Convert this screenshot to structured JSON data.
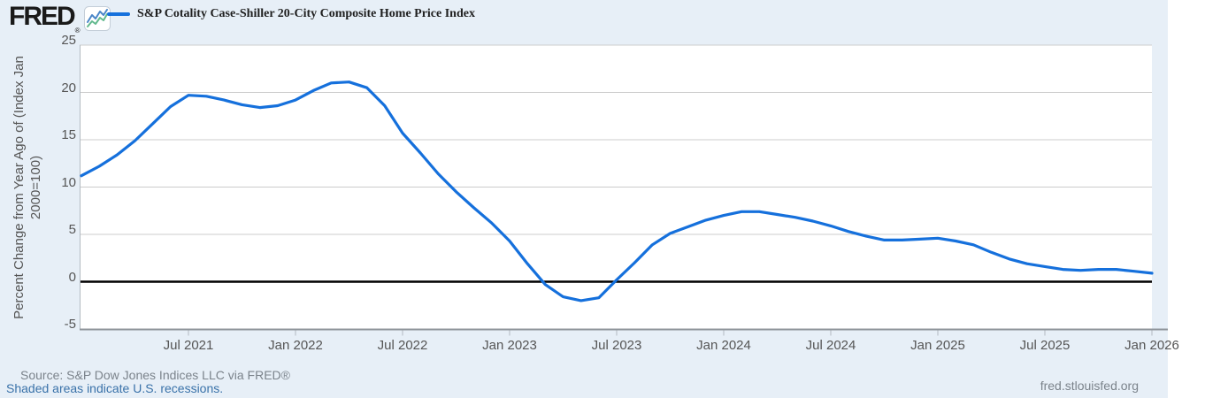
{
  "brand": {
    "logo_text": "FRED",
    "registered_mark": "®",
    "icon": "fred-sparkline-icon"
  },
  "chart_data": {
    "type": "line",
    "title": "S&P Cotality Case-Shiller 20-City Composite Home Price Index",
    "ylabel_lines": [
      "Percent Change from Year Ago of (Index Jan",
      "2000=100)"
    ],
    "ylim": [
      -5,
      25
    ],
    "y_ticks": [
      25,
      20,
      15,
      10,
      5,
      0,
      -5
    ],
    "grid": "horizontal",
    "zero_line": true,
    "legend_position": "top",
    "x_domain": [
      "Jan 2021",
      "Jan 2026"
    ],
    "months_total": 60,
    "x_ticks": [
      {
        "label": "Jul 2021",
        "m": 6
      },
      {
        "label": "Jan 2022",
        "m": 12
      },
      {
        "label": "Jul 2022",
        "m": 18
      },
      {
        "label": "Jan 2023",
        "m": 24
      },
      {
        "label": "Jul 2023",
        "m": 30
      },
      {
        "label": "Jan 2024",
        "m": 36
      },
      {
        "label": "Jul 2024",
        "m": 42
      },
      {
        "label": "Jan 2025",
        "m": 48
      },
      {
        "label": "Jul 2025",
        "m": 54
      },
      {
        "label": "Jan 2026",
        "m": 60
      }
    ],
    "series": [
      {
        "name": "S&P Cotality Case-Shiller 20-City Composite Home Price Index",
        "start": "Jan 2021",
        "frequency": "monthly",
        "values": [
          11.2,
          12.2,
          13.4,
          14.9,
          16.7,
          18.5,
          19.7,
          19.6,
          19.2,
          18.7,
          18.4,
          18.6,
          19.2,
          20.2,
          21.0,
          21.1,
          20.5,
          18.6,
          15.7,
          13.6,
          11.4,
          9.5,
          7.8,
          6.2,
          4.3,
          1.9,
          -0.3,
          -1.6,
          -2.0,
          -1.7,
          0.2,
          2.0,
          3.9,
          5.1,
          5.8,
          6.5,
          7.0,
          7.4,
          7.4,
          7.1,
          6.8,
          6.4,
          5.9,
          5.3,
          4.8,
          4.4,
          4.4,
          4.5,
          4.6,
          4.3,
          3.9,
          3.1,
          2.4,
          1.9,
          1.6,
          1.3,
          1.2,
          1.3,
          1.3,
          1.1,
          0.9
        ]
      }
    ],
    "colors": {
      "background": "#e7eff7",
      "plot_background": "#ffffff",
      "grid": "#cccccc",
      "axis": "#8f959b",
      "tick": "#b3bac1",
      "tick_label": "#555555",
      "series": "#1570dc",
      "zero_line": "#000000"
    }
  },
  "footer": {
    "source": "Source: S&P Dow Jones Indices LLC via FRED®",
    "recession_note": "Shaded areas indicate U.S. recessions.",
    "site": "fred.stlouisfed.org"
  }
}
